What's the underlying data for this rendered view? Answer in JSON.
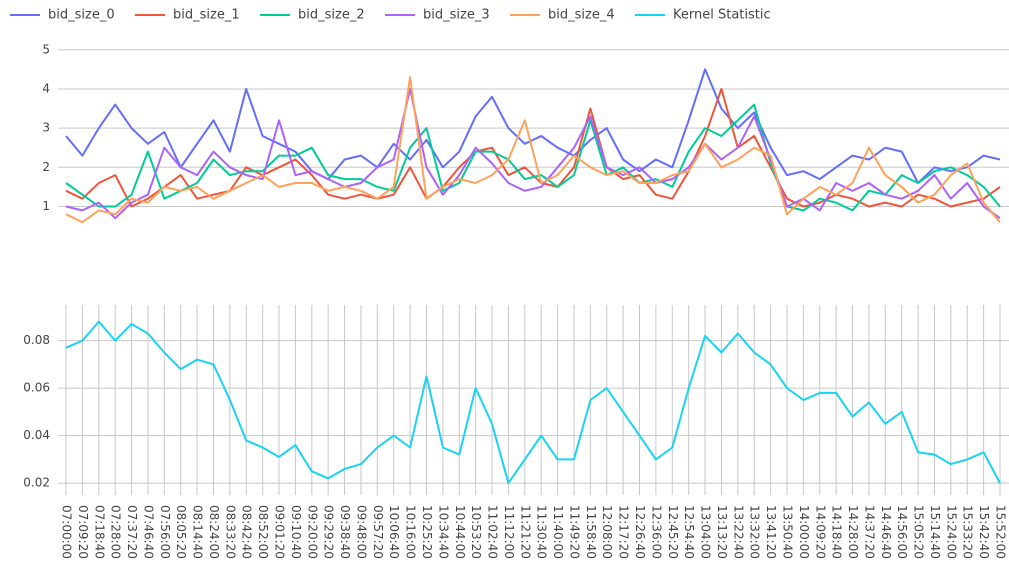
{
  "chart_data": [
    {
      "type": "line",
      "series": [
        {
          "name": "bid_size_0",
          "color": "#636efa",
          "values": [
            2.8,
            2.3,
            3.0,
            3.6,
            3.0,
            2.6,
            2.9,
            2.0,
            2.6,
            3.2,
            2.4,
            4.0,
            2.8,
            2.6,
            2.4,
            1.9,
            1.7,
            2.2,
            2.3,
            2.0,
            2.6,
            2.2,
            2.7,
            2.0,
            2.4,
            3.3,
            3.8,
            3.0,
            2.6,
            2.8,
            2.5,
            2.3,
            2.7,
            3.0,
            2.2,
            1.9,
            2.2,
            2.0,
            3.2,
            4.5,
            3.5,
            3.0,
            3.4,
            2.5,
            1.8,
            1.9,
            1.7,
            2.0,
            2.3,
            2.2,
            2.5,
            2.4,
            1.6,
            2.0,
            1.9,
            2.0,
            2.3,
            2.2
          ]
        },
        {
          "name": "bid_size_1",
          "color": "#EF553B",
          "values": [
            1.4,
            1.2,
            1.6,
            1.8,
            1.0,
            1.2,
            1.5,
            1.8,
            1.2,
            1.3,
            1.4,
            2.0,
            1.8,
            2.0,
            2.2,
            1.8,
            1.3,
            1.2,
            1.3,
            1.2,
            1.3,
            2.0,
            1.2,
            1.5,
            2.0,
            2.4,
            2.5,
            1.8,
            2.0,
            1.6,
            1.5,
            2.0,
            3.5,
            2.0,
            1.7,
            1.8,
            1.3,
            1.2,
            1.9,
            2.8,
            4.0,
            2.5,
            2.8,
            2.0,
            1.2,
            1.0,
            1.1,
            1.3,
            1.2,
            1.0,
            1.1,
            1.0,
            1.3,
            1.2,
            1.0,
            1.1,
            1.2,
            1.5
          ]
        },
        {
          "name": "bid_size_2",
          "color": "#00cc96",
          "values": [
            1.6,
            1.3,
            1.0,
            1.0,
            1.3,
            2.4,
            1.2,
            1.4,
            1.6,
            2.2,
            1.8,
            1.9,
            1.9,
            2.3,
            2.3,
            2.5,
            1.8,
            1.7,
            1.7,
            1.5,
            1.4,
            2.5,
            3.0,
            1.4,
            1.6,
            2.4,
            2.4,
            2.2,
            1.7,
            1.8,
            1.5,
            1.8,
            3.2,
            1.8,
            2.0,
            1.6,
            1.7,
            1.5,
            2.4,
            3.0,
            2.8,
            3.2,
            3.6,
            2.1,
            1.0,
            0.9,
            1.2,
            1.1,
            0.9,
            1.4,
            1.3,
            1.8,
            1.6,
            1.9,
            2.0,
            1.8,
            1.5,
            1.0
          ]
        },
        {
          "name": "bid_size_3",
          "color": "#ab63fa",
          "values": [
            1.0,
            0.9,
            1.1,
            0.7,
            1.1,
            1.3,
            2.5,
            2.0,
            1.8,
            2.4,
            2.0,
            1.8,
            1.7,
            3.2,
            1.8,
            1.9,
            1.7,
            1.5,
            1.6,
            2.0,
            2.2,
            4.0,
            2.0,
            1.3,
            1.8,
            2.5,
            2.1,
            1.6,
            1.4,
            1.5,
            2.0,
            2.5,
            3.3,
            2.0,
            1.8,
            2.0,
            1.6,
            1.7,
            2.0,
            2.6,
            2.2,
            2.5,
            3.3,
            2.2,
            1.0,
            1.2,
            0.9,
            1.6,
            1.4,
            1.6,
            1.3,
            1.2,
            1.4,
            1.8,
            1.2,
            1.6,
            1.0,
            0.7
          ]
        },
        {
          "name": "bid_size_4",
          "color": "#FFA15A",
          "values": [
            0.8,
            0.6,
            0.9,
            0.8,
            1.2,
            1.1,
            1.5,
            1.4,
            1.5,
            1.2,
            1.4,
            1.6,
            1.8,
            1.5,
            1.6,
            1.6,
            1.4,
            1.5,
            1.4,
            1.2,
            1.5,
            4.3,
            1.2,
            1.5,
            1.7,
            1.6,
            1.8,
            2.2,
            3.2,
            1.6,
            1.8,
            2.3,
            2.0,
            1.8,
            1.9,
            1.6,
            1.6,
            1.8,
            1.9,
            2.6,
            2.0,
            2.2,
            2.5,
            2.3,
            0.8,
            1.2,
            1.5,
            1.3,
            1.6,
            2.5,
            1.8,
            1.5,
            1.1,
            1.3,
            1.8,
            2.1,
            1.1,
            0.6
          ]
        }
      ],
      "ylim": [
        0.4,
        5.3
      ],
      "yticks": [
        1,
        2,
        3,
        4,
        5
      ],
      "grid": true
    },
    {
      "type": "line",
      "categories": [
        "07:00:00",
        "07:09:20",
        "07:18:40",
        "07:28:00",
        "07:37:20",
        "07:46:40",
        "07:56:00",
        "08:05:20",
        "08:14:40",
        "08:24:00",
        "08:33:20",
        "08:42:40",
        "08:52:00",
        "09:01:20",
        "09:10:40",
        "09:20:00",
        "09:29:20",
        "09:38:40",
        "09:48:00",
        "09:57:20",
        "10:06:40",
        "10:16:00",
        "10:25:20",
        "10:34:40",
        "10:44:00",
        "10:53:20",
        "11:02:40",
        "11:12:00",
        "11:21:20",
        "11:30:40",
        "11:40:00",
        "11:49:20",
        "11:58:40",
        "12:08:00",
        "12:17:20",
        "12:26:40",
        "12:36:00",
        "12:45:20",
        "12:54:40",
        "13:04:00",
        "13:13:20",
        "13:22:40",
        "13:32:00",
        "13:41:20",
        "13:50:40",
        "14:00:00",
        "14:09:20",
        "14:18:40",
        "14:28:00",
        "14:37:20",
        "14:46:40",
        "14:56:00",
        "15:05:20",
        "15:14:40",
        "15:24:00",
        "15:33:20",
        "15:42:40",
        "15:52:00"
      ],
      "series": [
        {
          "name": "Kernel Statistic",
          "color": "#19d3f3",
          "values": [
            0.077,
            0.08,
            0.088,
            0.08,
            0.087,
            0.083,
            0.075,
            0.068,
            0.072,
            0.07,
            0.055,
            0.038,
            0.035,
            0.031,
            0.036,
            0.025,
            0.022,
            0.026,
            0.028,
            0.035,
            0.04,
            0.035,
            0.065,
            0.035,
            0.032,
            0.06,
            0.045,
            0.02,
            0.03,
            0.04,
            0.03,
            0.03,
            0.055,
            0.06,
            0.05,
            0.04,
            0.03,
            0.035,
            0.06,
            0.082,
            0.075,
            0.083,
            0.075,
            0.07,
            0.06,
            0.055,
            0.058,
            0.058,
            0.048,
            0.054,
            0.045,
            0.05,
            0.033,
            0.032,
            0.028,
            0.03,
            0.033,
            0.02
          ]
        }
      ],
      "ylim": [
        0.015,
        0.095
      ],
      "yticks": [
        0.02,
        0.04,
        0.06,
        0.08
      ],
      "grid": true,
      "xgrid": true
    }
  ]
}
